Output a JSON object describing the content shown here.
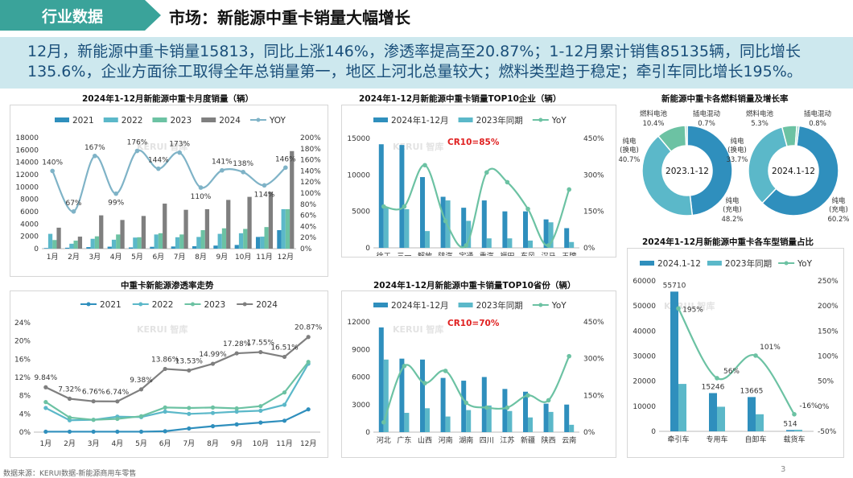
{
  "header": {
    "tag": "行业数据",
    "title": "市场：新能源中重卡销量大幅增长"
  },
  "summary": "12月，新能源中重卡销量15813，同比上涨146%，渗透率提高至20.87%；1-12月累计销售85135辆，同比增长135.6%，企业方面徐工取得全年总销量第一，地区上河北总量较大；燃料类型趋于稳定；牵引车同比增长195%。",
  "footer": {
    "source": "数据来源：KERUI数据-新能源商用车零售",
    "page": "3"
  },
  "watermark": "KERUI 智库",
  "chart_data": [
    {
      "id": "monthly",
      "type": "bar",
      "title": "2024年1-12月新能源中重卡月度销量（辆）",
      "categories": [
        "1月",
        "2月",
        "3月",
        "4月",
        "5月",
        "6月",
        "7月",
        "8月",
        "9月",
        "10月",
        "11月",
        "12月"
      ],
      "series": [
        {
          "name": "2021",
          "values": [
            100,
            150,
            250,
            320,
            200,
            300,
            350,
            400,
            500,
            600,
            1900,
            3000
          ],
          "color": "#2f8fbd"
        },
        {
          "name": "2022",
          "values": [
            2400,
            800,
            1600,
            1450,
            1800,
            2300,
            1850,
            1900,
            2400,
            2500,
            1950,
            6400
          ],
          "color": "#5bb8c9"
        },
        {
          "name": "2023",
          "values": [
            1400,
            1300,
            2000,
            2300,
            1850,
            2500,
            2300,
            3000,
            3300,
            3200,
            3500,
            6400
          ],
          "color": "#6cc2a3"
        },
        {
          "name": "2024",
          "values": [
            3400,
            1950,
            5400,
            4650,
            5300,
            7300,
            6300,
            6400,
            7900,
            8400,
            9200,
            15813
          ],
          "color": "#7f7f7f"
        }
      ],
      "yoy": {
        "name": "YOY",
        "values": [
          140,
          67,
          167,
          99,
          176,
          144,
          173,
          110,
          141,
          138,
          114,
          146
        ],
        "labels": [
          "140%",
          "67%",
          "167%",
          "99%",
          "176%",
          "144%",
          "173%",
          "110%",
          "141%",
          "138%",
          "114%",
          "146%"
        ],
        "color": "#7fb3c7"
      },
      "y_ticks": [
        "0",
        "2000",
        "4000",
        "6000",
        "8000",
        "10000",
        "12000",
        "14000",
        "16000",
        "18000"
      ],
      "y2_ticks": [
        "0%",
        "20%",
        "40%",
        "60%",
        "80%",
        "100%",
        "120%",
        "140%",
        "160%",
        "180%",
        "200%"
      ],
      "ylim": [
        0,
        18000
      ],
      "y2lim": [
        0,
        200
      ]
    },
    {
      "id": "top10_ent",
      "type": "bar",
      "title": "2024年1-12月新能源中重卡销量TOP10企业（辆）",
      "annotation": "CR10=85%",
      "categories": [
        "徐工",
        "三一",
        "解放",
        "陕汽",
        "宇通",
        "重汽",
        "福田",
        "东风",
        "汉马",
        "王牌"
      ],
      "series": [
        {
          "name": "2024年1-12月",
          "values": [
            14200,
            14100,
            9700,
            7000,
            5500,
            6500,
            5000,
            5000,
            3900,
            2700
          ],
          "color": "#2f8fbd"
        },
        {
          "name": "2023年同期",
          "values": [
            5500,
            5300,
            2300,
            6500,
            3700,
            1300,
            1300,
            1000,
            3500,
            800
          ],
          "color": "#5bb8c9"
        }
      ],
      "yoy": {
        "name": "YoY",
        "values": [
          170,
          170,
          340,
          110,
          10,
          310,
          270,
          160,
          10,
          240
        ],
        "color": "#6cc2a3"
      },
      "y_ticks": [
        "0",
        "5000",
        "10000",
        "15000"
      ],
      "y2_ticks": [
        "0%",
        "150%",
        "300%",
        "450%"
      ],
      "ylim": [
        0,
        15000
      ],
      "y2lim": [
        0,
        450
      ]
    },
    {
      "id": "fuel",
      "type": "pie",
      "title": "新能源中重卡各燃料销量及增长率",
      "pies": [
        {
          "center": "2023.1-12",
          "slices": [
            {
              "label": "纯电\n(充电)",
              "value": 48.2,
              "text": "48.2%",
              "color": "#2f8fbd"
            },
            {
              "label": "纯电\n(换电)",
              "value": 40.7,
              "text": "40.7%",
              "color": "#5bb8c9"
            },
            {
              "label": "燃料电池",
              "value": 10.4,
              "text": "10.4%",
              "color": "#6cc2a3"
            },
            {
              "label": "插电混动",
              "value": 0.7,
              "text": "0.7%",
              "color": "#8fd1bf"
            }
          ]
        },
        {
          "center": "2024.1-12",
          "slices": [
            {
              "label": "纯电\n(充电)",
              "value": 60.2,
              "text": "60.2%",
              "color": "#2f8fbd"
            },
            {
              "label": "纯电\n(换电)",
              "value": 33.7,
              "text": "33.7%",
              "color": "#5bb8c9"
            },
            {
              "label": "燃料电池",
              "value": 5.3,
              "text": "5.3%",
              "color": "#6cc2a3"
            },
            {
              "label": "插电混动",
              "value": 0.8,
              "text": "0.8%",
              "color": "#8fd1bf"
            }
          ]
        }
      ]
    },
    {
      "id": "penetration",
      "type": "line",
      "title": "中重卡新能源渗透率走势",
      "categories": [
        "1月",
        "2月",
        "3月",
        "4月",
        "5月",
        "6月",
        "7月",
        "8月",
        "9月",
        "10月",
        "11月",
        "12月"
      ],
      "series": [
        {
          "name": "2021",
          "values": [
            0.1,
            0.1,
            0.1,
            0.1,
            0.1,
            0.2,
            0.8,
            1.3,
            1.7,
            2.1,
            2.5,
            5.0
          ],
          "color": "#2f8fbd"
        },
        {
          "name": "2022",
          "values": [
            5.3,
            2.6,
            2.7,
            3.4,
            3.3,
            4.5,
            4.0,
            4.2,
            4.5,
            4.7,
            6.0,
            15.0
          ],
          "color": "#5bb8c9"
        },
        {
          "name": "2023",
          "values": [
            6.6,
            3.2,
            2.7,
            2.9,
            3.5,
            5.4,
            5.3,
            5.4,
            5.2,
            5.7,
            8.7,
            15.4
          ],
          "color": "#6cc2a3"
        },
        {
          "name": "2024",
          "values": [
            9.84,
            7.32,
            6.76,
            6.74,
            9.38,
            13.86,
            13.53,
            14.99,
            17.28,
            17.55,
            16.51,
            20.87
          ],
          "labels": [
            "9.84%",
            "7.32%",
            "6.76%",
            "6.74%",
            "9.38%",
            "13.86%",
            "13.53%",
            "14.99%",
            "17.28%",
            "17.55%",
            "16.51%",
            "20.87%"
          ],
          "color": "#7f7f7f"
        }
      ],
      "y_ticks": [
        "0%",
        "4%",
        "8%",
        "12%",
        "16%",
        "20%",
        "24%"
      ],
      "ylim": [
        0,
        24
      ]
    },
    {
      "id": "top10_prov",
      "type": "bar",
      "title": "2024年1-12月新能源中重卡销量TOP10省份（辆）",
      "annotation": "CR10=70%",
      "categories": [
        "河北",
        "广东",
        "山西",
        "河南",
        "湖南",
        "四川",
        "江苏",
        "新疆",
        "陕西",
        "云南"
      ],
      "series": [
        {
          "name": "2024年1-12月",
          "values": [
            11400,
            8000,
            7900,
            5900,
            5600,
            6000,
            4700,
            4400,
            3100,
            3000
          ],
          "color": "#2f8fbd"
        },
        {
          "name": "2023年同期",
          "values": [
            7900,
            2100,
            2600,
            1700,
            2400,
            2900,
            2300,
            1600,
            2200,
            800
          ],
          "color": "#5bb8c9"
        }
      ],
      "yoy": {
        "name": "YoY",
        "values": [
          40,
          270,
          200,
          250,
          120,
          100,
          100,
          150,
          130,
          310
        ],
        "color": "#6cc2a3"
      },
      "y_ticks": [
        "0",
        "3000",
        "6000",
        "9000",
        "12000"
      ],
      "y2_ticks": [
        "0%",
        "150%",
        "300%",
        "450%"
      ],
      "ylim": [
        0,
        12000
      ],
      "y2lim": [
        0,
        450
      ]
    },
    {
      "id": "vehicle_type",
      "type": "bar",
      "title": "2024年1-12月新能源中重卡各车型销量占比",
      "categories": [
        "牵引车",
        "专用车",
        "自卸车",
        "载货车"
      ],
      "series": [
        {
          "name": "2024.1-12",
          "values": [
            55710,
            15246,
            13665,
            514
          ],
          "labels": [
            "55710",
            "15246",
            "13665",
            "514"
          ],
          "color": "#2f8fbd"
        },
        {
          "name": "2023年同期",
          "values": [
            18900,
            9800,
            6800,
            600
          ],
          "color": "#5bb8c9"
        }
      ],
      "yoy": {
        "name": "YoY",
        "values": [
          195,
          56,
          101,
          -16
        ],
        "labels": [
          "195%",
          "56%",
          "101%",
          "-16%"
        ],
        "color": "#6cc2a3"
      },
      "y_ticks": [
        "0",
        "10000",
        "20000",
        "30000",
        "40000",
        "50000",
        "60000"
      ],
      "y2_ticks": [
        "-50%",
        "0%",
        "50%",
        "100%",
        "150%",
        "200%",
        "250%"
      ],
      "ylim": [
        0,
        60000
      ],
      "y2lim": [
        -50,
        250
      ]
    }
  ]
}
